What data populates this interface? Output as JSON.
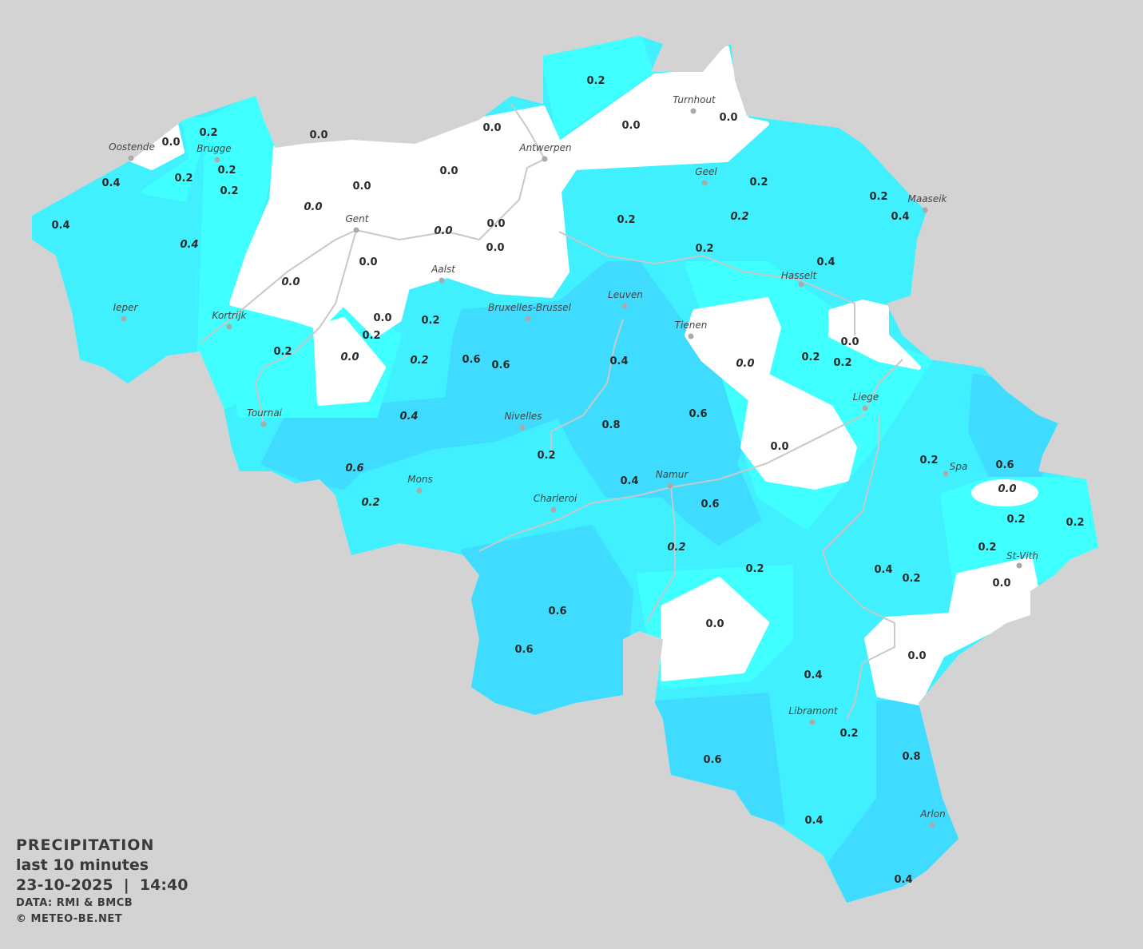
{
  "legend": {
    "title": "PRECIPITATION",
    "period": "last 10 minutes",
    "datetime": "23-10-2025  |  14:40",
    "source": "DATA: RMI & BMCB",
    "copyright": "© METEO-BE.NET"
  },
  "colors": {
    "background": "#d3d3d3",
    "none": "#ffffff",
    "light": "#40ffff",
    "medium": "#40f0ff",
    "dark": "#40dcff",
    "rivers": "#c8c8c8"
  },
  "cities": [
    "Oostende",
    "Brugge",
    "Turnhout",
    "Antwerpen",
    "Geel",
    "Maaseik",
    "Gent",
    "Aalst",
    "Hasselt",
    "Leuven",
    "Bruxelles-Brussel",
    "Ieper",
    "Kortrijk",
    "Tienen",
    "Liege",
    "Tournai",
    "Nivelles",
    "Namur",
    "Spa",
    "Mons",
    "Charleroi",
    "St-Vith",
    "Libramont",
    "Arlon"
  ],
  "stations": [
    {
      "v": "0.2",
      "i": false
    },
    {
      "v": "0.0",
      "i": false
    },
    {
      "v": "0.0",
      "i": false
    },
    {
      "v": "0.0",
      "i": false
    },
    {
      "v": "0.0",
      "i": false
    },
    {
      "v": "0.0",
      "i": false
    },
    {
      "v": "0.2",
      "i": false
    },
    {
      "v": "0.2",
      "i": false
    },
    {
      "v": "0.2",
      "i": false
    },
    {
      "v": "0.2",
      "i": false
    },
    {
      "v": "0.4",
      "i": false
    },
    {
      "v": "0.4",
      "i": false
    },
    {
      "v": "0.4",
      "i": true
    },
    {
      "v": "0.0",
      "i": false
    },
    {
      "v": "0.0",
      "i": false
    },
    {
      "v": "0.0",
      "i": true
    },
    {
      "v": "0.0",
      "i": true
    },
    {
      "v": "0.0",
      "i": false
    },
    {
      "v": "0.0",
      "i": false
    },
    {
      "v": "0.0",
      "i": false
    },
    {
      "v": "0.0",
      "i": true
    },
    {
      "v": "0.2",
      "i": false
    },
    {
      "v": "0.2",
      "i": false
    },
    {
      "v": "0.2",
      "i": true
    },
    {
      "v": "0.2",
      "i": false
    },
    {
      "v": "0.2",
      "i": false
    },
    {
      "v": "0.4",
      "i": false
    },
    {
      "v": "0.4",
      "i": false
    },
    {
      "v": "0.0",
      "i": false
    },
    {
      "v": "0.2",
      "i": false
    },
    {
      "v": "0.2",
      "i": false
    },
    {
      "v": "0.0",
      "i": true
    },
    {
      "v": "0.0",
      "i": false
    },
    {
      "v": "0.2",
      "i": false
    },
    {
      "v": "0.2",
      "i": false
    },
    {
      "v": "0.0",
      "i": true
    },
    {
      "v": "0.2",
      "i": true
    },
    {
      "v": "0.6",
      "i": false
    },
    {
      "v": "0.6",
      "i": false
    },
    {
      "v": "0.4",
      "i": false
    },
    {
      "v": "0.2",
      "i": false
    },
    {
      "v": "0.4",
      "i": true
    },
    {
      "v": "0.8",
      "i": false
    },
    {
      "v": "0.6",
      "i": false
    },
    {
      "v": "0.0",
      "i": false
    },
    {
      "v": "0.2",
      "i": false
    },
    {
      "v": "0.6",
      "i": true
    },
    {
      "v": "0.2",
      "i": true
    },
    {
      "v": "0.4",
      "i": false
    },
    {
      "v": "0.6",
      "i": false
    },
    {
      "v": "0.2",
      "i": true
    },
    {
      "v": "0.2",
      "i": false
    },
    {
      "v": "0.2",
      "i": false
    },
    {
      "v": "0.6",
      "i": false
    },
    {
      "v": "0.0",
      "i": true
    },
    {
      "v": "0.2",
      "i": false
    },
    {
      "v": "0.2",
      "i": false
    },
    {
      "v": "0.2",
      "i": false
    },
    {
      "v": "0.4",
      "i": false
    },
    {
      "v": "0.2",
      "i": false
    },
    {
      "v": "0.0",
      "i": false
    },
    {
      "v": "0.0",
      "i": false
    },
    {
      "v": "0.0",
      "i": false
    },
    {
      "v": "0.6",
      "i": false
    },
    {
      "v": "0.6",
      "i": false
    },
    {
      "v": "0.4",
      "i": false
    },
    {
      "v": "0.2",
      "i": false
    },
    {
      "v": "0.8",
      "i": false
    },
    {
      "v": "0.6",
      "i": false
    },
    {
      "v": "0.4",
      "i": false
    },
    {
      "v": "0.4",
      "i": false
    }
  ]
}
